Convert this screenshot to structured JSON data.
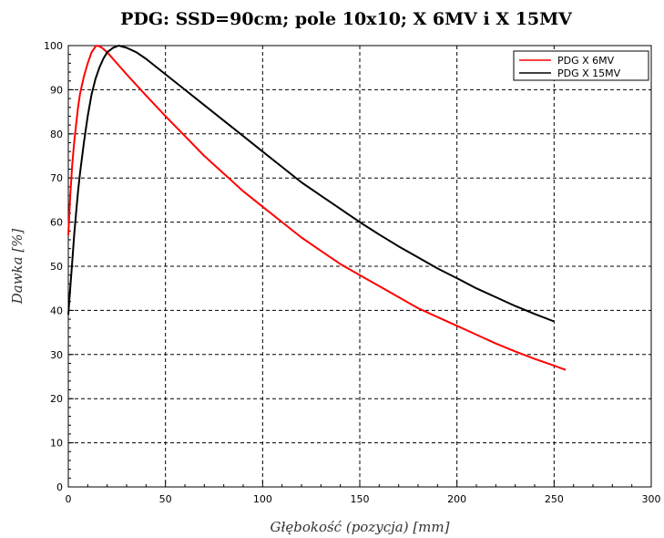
{
  "chart_data": {
    "type": "line",
    "title": "PDG: SSD=90cm; pole 10x10; X 6MV i X 15MV",
    "xlabel": "Głębokość (pozycja) [mm]",
    "ylabel": "Dawka [%]",
    "xlim": [
      0,
      300
    ],
    "ylim": [
      0,
      100
    ],
    "xticks": [
      "0",
      "50",
      "100",
      "150",
      "200",
      "250",
      "300"
    ],
    "yticks": [
      "0",
      "10",
      "20",
      "30",
      "40",
      "50",
      "60",
      "70",
      "80",
      "90",
      "100"
    ],
    "grid": true,
    "legend_position": "top-right",
    "series": [
      {
        "name": "PDG X 6MV",
        "color": "#ff0000",
        "points": [
          [
            0,
            57
          ],
          [
            1,
            66
          ],
          [
            2,
            73
          ],
          [
            3,
            78
          ],
          [
            4,
            82
          ],
          [
            5,
            86
          ],
          [
            6,
            89
          ],
          [
            8,
            93
          ],
          [
            10,
            96
          ],
          [
            12,
            98.5
          ],
          [
            14,
            99.8
          ],
          [
            15,
            100
          ],
          [
            17,
            99.6
          ],
          [
            20,
            98.5
          ],
          [
            25,
            96
          ],
          [
            30,
            93.5
          ],
          [
            40,
            88.7
          ],
          [
            50,
            84
          ],
          [
            60,
            79.5
          ],
          [
            70,
            75
          ],
          [
            80,
            71
          ],
          [
            90,
            67
          ],
          [
            100,
            63.5
          ],
          [
            110,
            60
          ],
          [
            120,
            56.5
          ],
          [
            130,
            53.5
          ],
          [
            140,
            50.5
          ],
          [
            150,
            48
          ],
          [
            160,
            45.5
          ],
          [
            170,
            43
          ],
          [
            180,
            40.5
          ],
          [
            190,
            38.5
          ],
          [
            200,
            36.5
          ],
          [
            210,
            34.5
          ],
          [
            220,
            32.5
          ],
          [
            230,
            30.7
          ],
          [
            240,
            29
          ],
          [
            250,
            27.5
          ],
          [
            256,
            26.5
          ]
        ]
      },
      {
        "name": "PDG X 15MV",
        "color": "#000000",
        "points": [
          [
            0,
            39
          ],
          [
            1,
            45
          ],
          [
            2,
            51
          ],
          [
            3,
            57
          ],
          [
            4,
            62
          ],
          [
            5,
            67
          ],
          [
            6,
            71
          ],
          [
            8,
            78
          ],
          [
            10,
            84
          ],
          [
            12,
            89
          ],
          [
            14,
            92.5
          ],
          [
            16,
            95
          ],
          [
            18,
            97
          ],
          [
            20,
            98.5
          ],
          [
            23,
            99.5
          ],
          [
            26,
            100
          ],
          [
            30,
            99.5
          ],
          [
            35,
            98.5
          ],
          [
            40,
            97
          ],
          [
            50,
            93.5
          ],
          [
            60,
            90
          ],
          [
            70,
            86.5
          ],
          [
            80,
            83
          ],
          [
            90,
            79.5
          ],
          [
            100,
            76
          ],
          [
            110,
            72.5
          ],
          [
            120,
            69
          ],
          [
            130,
            66
          ],
          [
            140,
            63
          ],
          [
            150,
            60
          ],
          [
            160,
            57.2
          ],
          [
            170,
            54.5
          ],
          [
            180,
            52
          ],
          [
            190,
            49.5
          ],
          [
            200,
            47.3
          ],
          [
            210,
            45
          ],
          [
            220,
            43
          ],
          [
            230,
            41
          ],
          [
            240,
            39.2
          ],
          [
            250,
            37.5
          ]
        ]
      }
    ]
  }
}
